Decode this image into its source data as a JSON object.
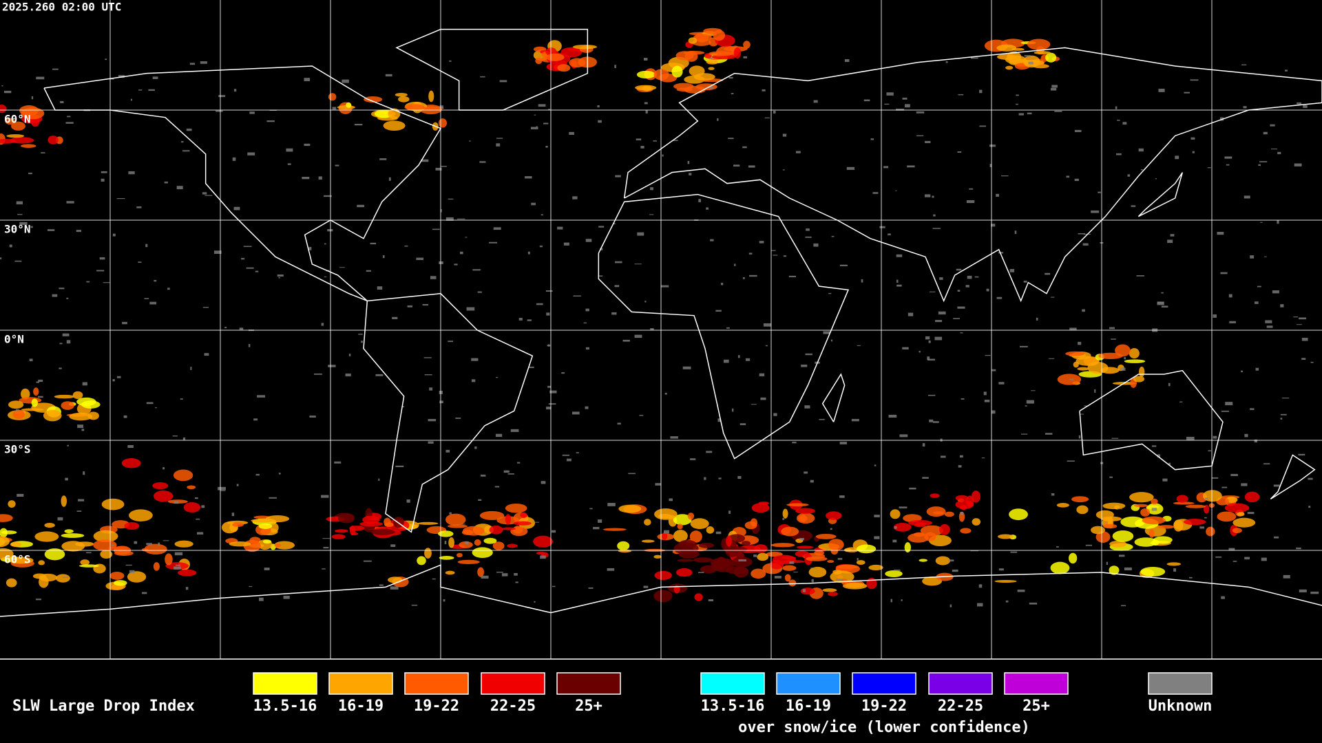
{
  "header": {
    "timestamp": "2025.260 02:00 UTC"
  },
  "map": {
    "lat_labels": [
      "60°N",
      "30°N",
      "0°N",
      "30°S",
      "60°S"
    ]
  },
  "legend": {
    "title": "SLW Large Drop Index",
    "items": [
      {
        "label": "13.5-16",
        "color": "#ffff00"
      },
      {
        "label": "16-19",
        "color": "#ffa500"
      },
      {
        "label": "19-22",
        "color": "#ff5a00"
      },
      {
        "label": "22-25",
        "color": "#f00000"
      },
      {
        "label": "25+",
        "color": "#6a0000"
      }
    ],
    "snow_items": [
      {
        "label": "13.5-16",
        "color": "#00ffff"
      },
      {
        "label": "16-19",
        "color": "#1e90ff"
      },
      {
        "label": "19-22",
        "color": "#0000ff"
      },
      {
        "label": "22-25",
        "color": "#7a00e8"
      },
      {
        "label": "25+",
        "color": "#c000d8"
      }
    ],
    "snow_caption": "over snow/ice (lower confidence)",
    "unknown": {
      "label": "Unknown",
      "color": "#808080"
    }
  }
}
